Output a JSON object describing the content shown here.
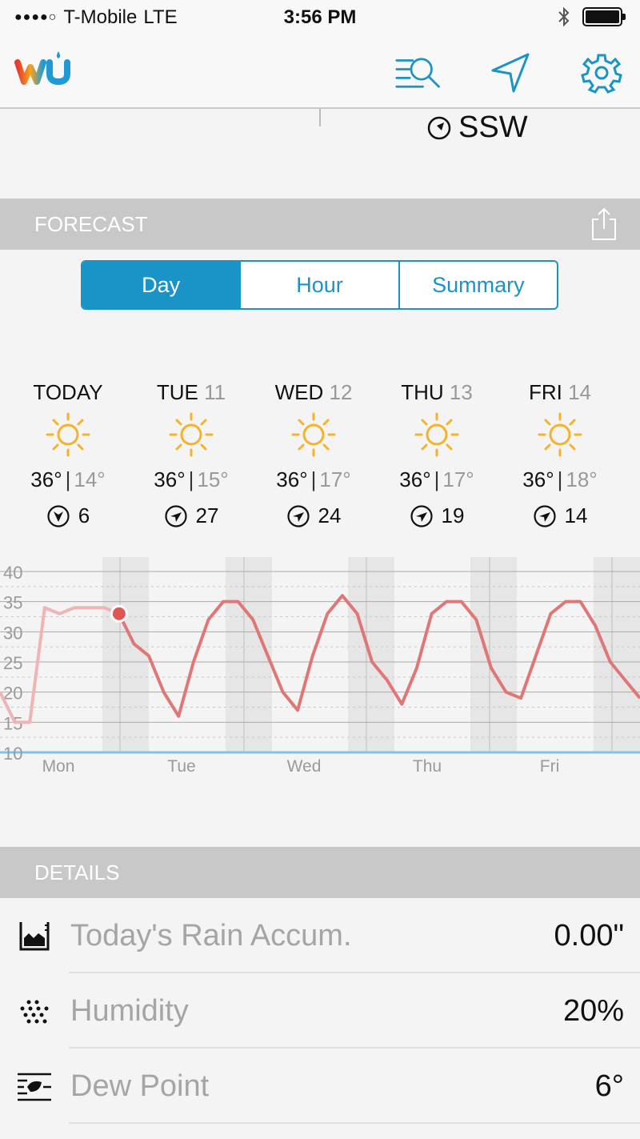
{
  "status": {
    "carrier": "T-Mobile",
    "network": "LTE",
    "time": "3:56 PM"
  },
  "wind_peek": {
    "direction": "SSW"
  },
  "forecast": {
    "title": "FORECAST",
    "tabs": [
      {
        "label": "Day",
        "active": true
      },
      {
        "label": "Hour",
        "active": false
      },
      {
        "label": "Summary",
        "active": false
      }
    ],
    "days": [
      {
        "name": "TODAY",
        "num": "",
        "high": "36°",
        "low": "14°",
        "wind": "6",
        "wind_icon": "wind-south-icon"
      },
      {
        "name": "TUE",
        "num": "11",
        "high": "36°",
        "low": "15°",
        "wind": "27",
        "wind_icon": "wind-east-icon"
      },
      {
        "name": "WED",
        "num": "12",
        "high": "36°",
        "low": "17°",
        "wind": "24",
        "wind_icon": "wind-east-icon"
      },
      {
        "name": "THU",
        "num": "13",
        "high": "36°",
        "low": "17°",
        "wind": "19",
        "wind_icon": "wind-east-icon"
      },
      {
        "name": "FRI",
        "num": "14",
        "high": "36°",
        "low": "18°",
        "wind": "14",
        "wind_icon": "wind-east-icon"
      }
    ]
  },
  "chart_data": {
    "type": "line",
    "ylim": [
      10,
      40
    ],
    "y_ticks": [
      "40",
      "35",
      "30",
      "25",
      "20",
      "15",
      "10"
    ],
    "x_labels": [
      "Mon",
      "Tue",
      "Wed",
      "Thu",
      "Fri"
    ],
    "series": [
      {
        "values": [
          20,
          15,
          15,
          34,
          33,
          34,
          34,
          34,
          33,
          28,
          26,
          20,
          16,
          25,
          32,
          35,
          35,
          32,
          26,
          20,
          17,
          26,
          33,
          36,
          33,
          25,
          22,
          18,
          24,
          33,
          35,
          35,
          32,
          24,
          20,
          19,
          26,
          33,
          35,
          35,
          31,
          25,
          22,
          19
        ]
      }
    ],
    "grid": true,
    "colors": {
      "line": "#e07777",
      "current_marker": "#e05555",
      "shade": "#e6e6e6"
    }
  },
  "details": {
    "title": "DETAILS",
    "rows": [
      {
        "label": "Today's Rain Accum.",
        "value": "0.00\"",
        "icon": "rain-gauge-icon"
      },
      {
        "label": "Humidity",
        "value": "20%",
        "icon": "humidity-dots-icon"
      },
      {
        "label": "Dew Point",
        "value": "6°",
        "icon": "dew-point-icon"
      }
    ]
  }
}
